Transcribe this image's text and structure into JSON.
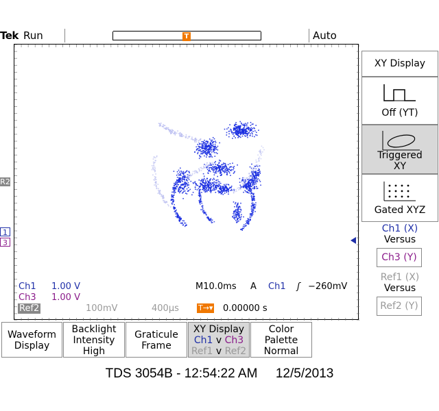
{
  "header": {
    "brand": "Tek",
    "acq_state": "Run",
    "trigger_mode": "Auto",
    "trigger_marker": "T"
  },
  "left_markers": {
    "ref2": "R2",
    "ch1": "1",
    "ch3": "3"
  },
  "readouts": {
    "ch1_label": "Ch1",
    "ch1_scale": "1.00 V",
    "ch3_label": "Ch3",
    "ch3_scale": "1.00 V",
    "ref2_label": "Ref2",
    "ref2_scale": "100mV",
    "ref2_time": "400µs",
    "timebase": "M10.0ms",
    "trig_source_prefix": "A",
    "trig_source": "Ch1",
    "trig_slope": "ʃ",
    "trig_level": "−260mV",
    "trig_position": "0.00000 s"
  },
  "side_menu": {
    "title": "XY Display",
    "off_label": "Off (YT)",
    "triggered_label_1": "Triggered",
    "triggered_label_2": "XY",
    "gated_label": "Gated XYZ",
    "ch1_x": "Ch1 (X)",
    "versus_1": "Versus",
    "ch3_y": "Ch3 (Y)",
    "ref1_x": "Ref1 (X)",
    "versus_2": "Versus",
    "ref2_y": "Ref2 (Y)"
  },
  "bottom_menu": {
    "waveform_1": "Waveform",
    "waveform_2": "Display",
    "backlight_1": "Backlight",
    "backlight_2": "Intensity",
    "backlight_3": "High",
    "graticule_1": "Graticule",
    "graticule_2": "Frame",
    "xy_1": "XY Display",
    "xy_ch1": "Ch1",
    "xy_v": "v",
    "xy_ch3": "Ch3",
    "xy_ref1": "Ref1",
    "xy_v2": "v",
    "xy_ref2": "Ref2",
    "color_1": "Color",
    "color_2": "Palette",
    "color_3": "Normal"
  },
  "footer": {
    "model": "TDS 3054B",
    "time": "12:54:22 AM",
    "date": "12/5/2013"
  },
  "colors": {
    "ch1": "#1f2fa8",
    "ch3": "#8a1a8a",
    "trigger": "#f07800",
    "trace": "#1a2ee0",
    "ref_trace": "#b8bcf0"
  }
}
